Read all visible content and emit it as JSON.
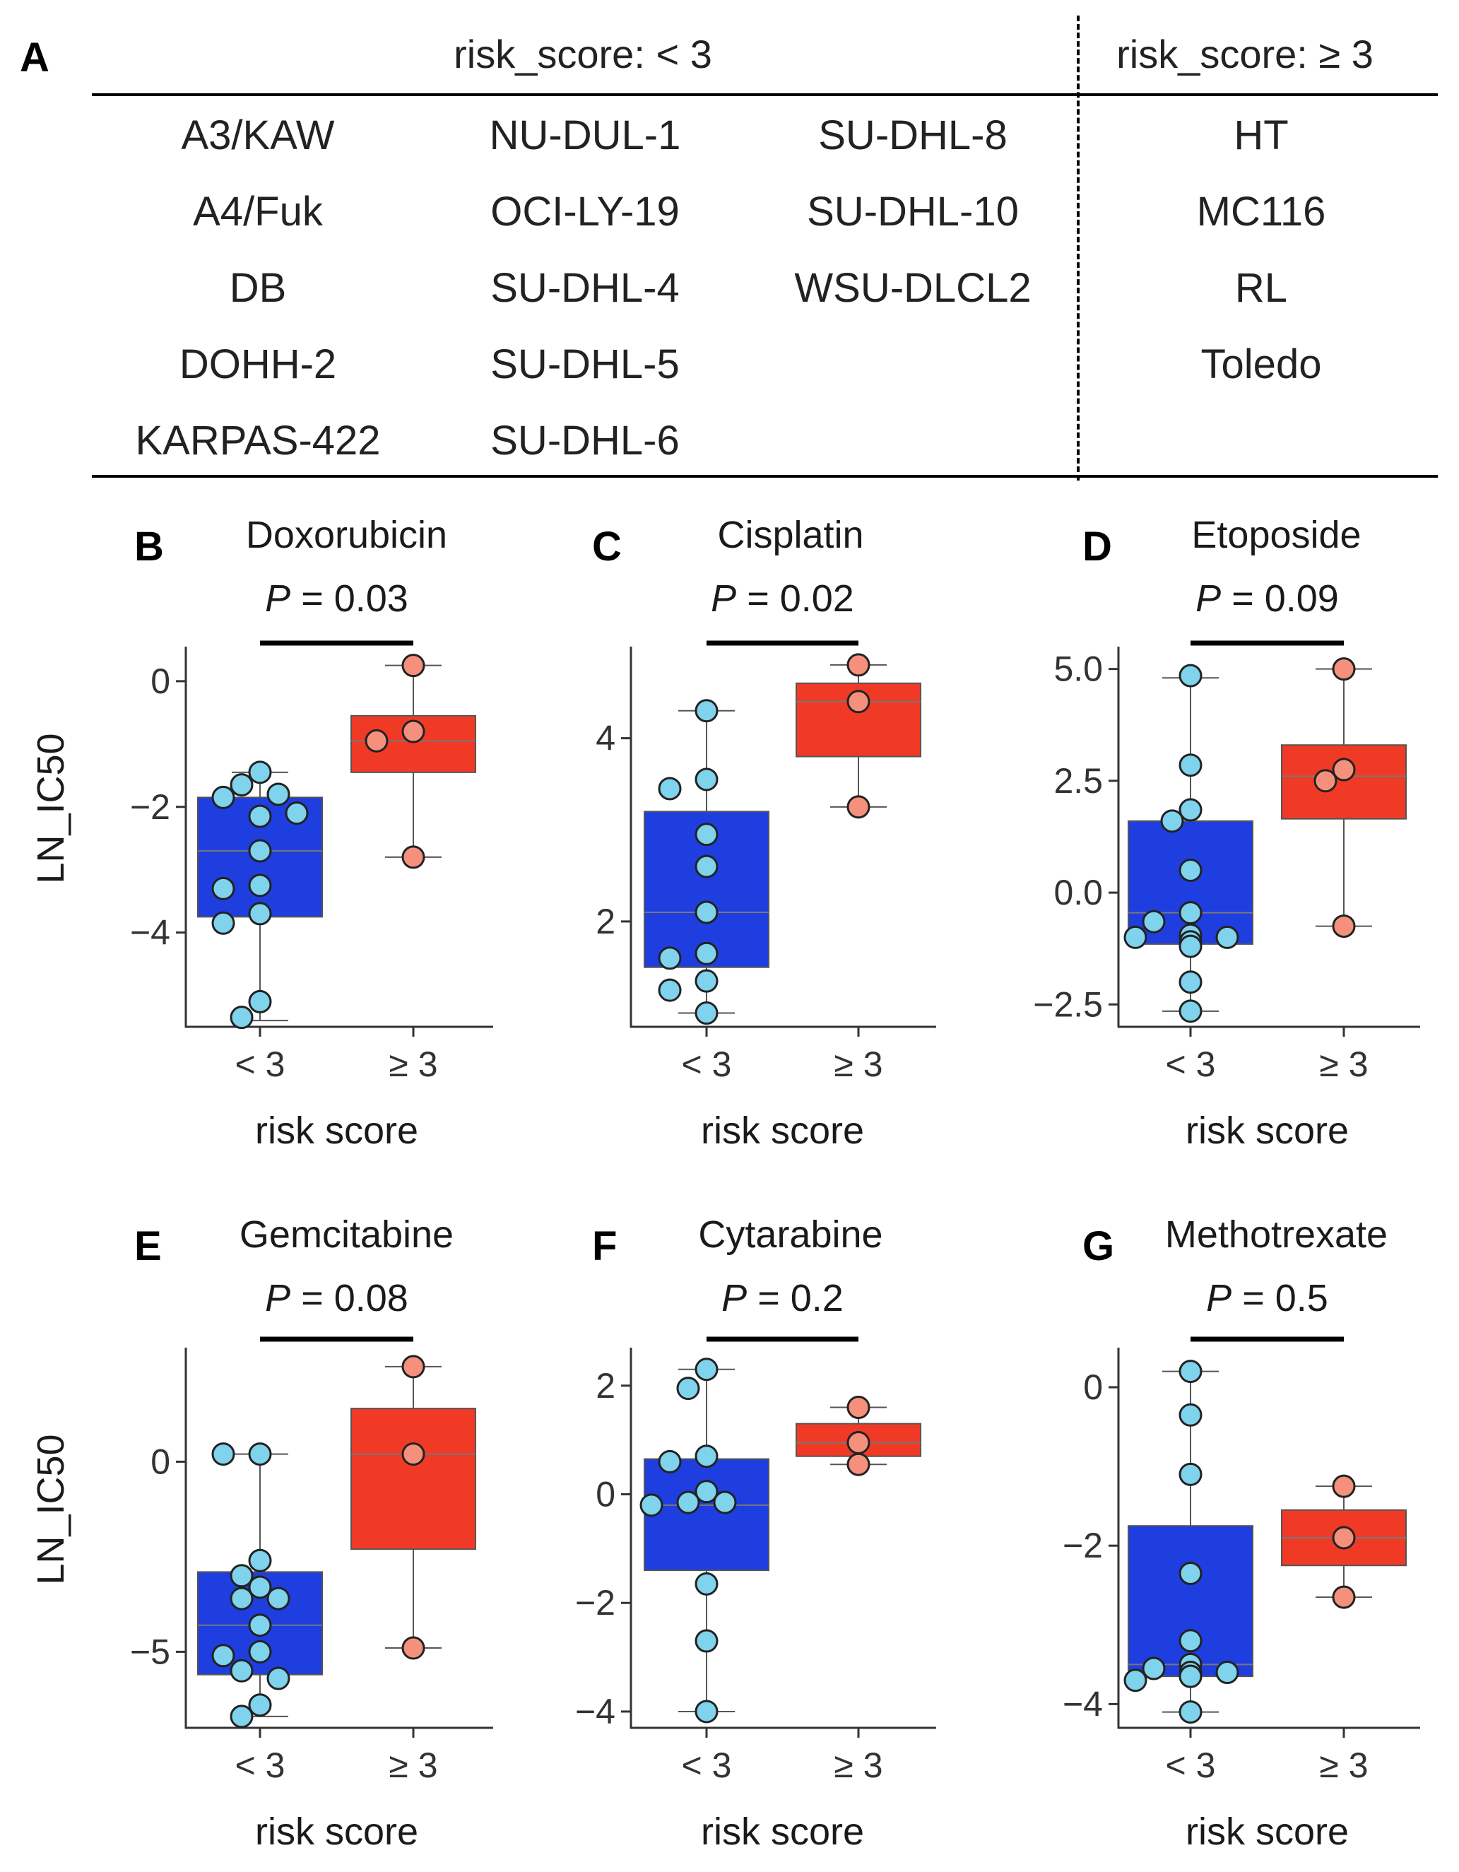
{
  "table": {
    "letter": "A",
    "group_low": {
      "header": "risk_score: < 3",
      "columns": [
        [
          "A3/KAW",
          "A4/Fuk",
          "DB",
          "DOHH-2",
          "KARPAS-422"
        ],
        [
          "NU-DUL-1",
          "OCI-LY-19",
          "SU-DHL-4",
          "SU-DHL-5",
          "SU-DHL-6"
        ],
        [
          "SU-DHL-8",
          "SU-DHL-10",
          "WSU-DLCL2"
        ]
      ]
    },
    "group_high": {
      "header": "risk_score: ≥ 3",
      "cells": [
        "HT",
        "MC116",
        "RL",
        "Toledo"
      ]
    }
  },
  "colors": {
    "low_box": "#1f3ee0",
    "high_box": "#f03a26",
    "low_point": "#7fd3ec",
    "high_point": "#f5907d"
  },
  "chart_data": [
    {
      "letter": "B",
      "type": "box",
      "title": "Doxorubicin",
      "p_label": "P",
      "p_value": "= 0.03",
      "xlabel": "risk score",
      "ylabel": "LN_IC50",
      "categories": [
        "< 3",
        "≥ 3"
      ],
      "ylim": [
        -5.5,
        0.55
      ],
      "yticks": [
        0,
        -2,
        -4
      ],
      "ytick_labels": [
        "0",
        "−2",
        "−4"
      ],
      "boxes": [
        {
          "whislo": -5.4,
          "q1": -3.75,
          "med": -2.7,
          "q3": -1.85,
          "whishi": -1.45
        },
        {
          "whislo": -2.8,
          "q1": -1.45,
          "med": -0.95,
          "q3": -0.55,
          "whishi": 0.25
        }
      ],
      "points": [
        [
          -1.45,
          -1.65,
          -1.8,
          -1.85,
          -2.15,
          -2.1,
          -2.7,
          -3.25,
          -3.3,
          -3.7,
          -3.85,
          -5.1,
          -5.35
        ],
        [
          0.25,
          -0.8,
          -0.95,
          -2.8
        ]
      ]
    },
    {
      "letter": "C",
      "type": "box",
      "title": "Cisplatin",
      "p_label": "P",
      "p_value": "= 0.02",
      "xlabel": "risk score",
      "ylabel": "",
      "categories": [
        "< 3",
        "≥ 3"
      ],
      "ylim": [
        0.85,
        5.0
      ],
      "yticks": [
        4,
        2
      ],
      "ytick_labels": [
        "4",
        "2"
      ],
      "boxes": [
        {
          "whislo": 1.0,
          "q1": 1.5,
          "med": 2.1,
          "q3": 3.2,
          "whishi": 4.3
        },
        {
          "whislo": 3.25,
          "q1": 3.8,
          "med": 4.4,
          "q3": 4.6,
          "whishi": 4.8
        }
      ],
      "points": [
        [
          4.3,
          3.55,
          3.45,
          2.95,
          2.6,
          2.1,
          1.65,
          1.6,
          1.35,
          1.25,
          1.0
        ],
        [
          4.8,
          4.4,
          3.25
        ]
      ]
    },
    {
      "letter": "D",
      "type": "box",
      "title": "Etoposide",
      "p_label": "P",
      "p_value": "= 0.09",
      "xlabel": "risk score",
      "ylabel": "",
      "categories": [
        "< 3",
        "≥ 3"
      ],
      "ylim": [
        -3.0,
        5.5
      ],
      "yticks": [
        5.0,
        2.5,
        0.0,
        -2.5
      ],
      "ytick_labels": [
        "5.0",
        "2.5",
        "0.0",
        "−2.5"
      ],
      "boxes": [
        {
          "whislo": -2.65,
          "q1": -1.15,
          "med": -0.45,
          "q3": 1.6,
          "whishi": 4.8
        },
        {
          "whislo": -0.75,
          "q1": 1.65,
          "med": 2.6,
          "q3": 3.3,
          "whishi": 5.0
        }
      ],
      "points": [
        [
          4.85,
          2.85,
          1.85,
          1.6,
          0.5,
          -0.45,
          -0.65,
          -0.95,
          -1.0,
          -1.0,
          -1.1,
          -1.2,
          -2.0,
          -2.65
        ],
        [
          5.0,
          2.75,
          2.5,
          -0.75
        ]
      ]
    },
    {
      "letter": "E",
      "type": "box",
      "title": "Gemcitabine",
      "p_label": "P",
      "p_value": "= 0.08",
      "xlabel": "risk score",
      "ylabel": "LN_IC50",
      "categories": [
        "< 3",
        "≥ 3"
      ],
      "ylim": [
        -7.0,
        3.0
      ],
      "yticks": [
        0,
        -5
      ],
      "ytick_labels": [
        "0",
        "−5"
      ],
      "boxes": [
        {
          "whislo": -6.7,
          "q1": -5.6,
          "med": -4.3,
          "q3": -2.9,
          "whishi": 0.2
        },
        {
          "whislo": -4.9,
          "q1": -2.3,
          "med": 0.2,
          "q3": 1.4,
          "whishi": 2.5
        }
      ],
      "points": [
        [
          0.2,
          0.2,
          -2.6,
          -3.0,
          -3.3,
          -3.6,
          -3.6,
          -4.3,
          -5.0,
          -5.1,
          -5.5,
          -5.7,
          -6.4,
          -6.7
        ],
        [
          2.5,
          0.2,
          -4.9
        ]
      ]
    },
    {
      "letter": "F",
      "type": "box",
      "title": "Cytarabine",
      "p_label": "P",
      "p_value": "= 0.2",
      "xlabel": "risk score",
      "ylabel": "",
      "categories": [
        "< 3",
        "≥ 3"
      ],
      "ylim": [
        -4.3,
        2.7
      ],
      "yticks": [
        2,
        0,
        -2,
        -4
      ],
      "ytick_labels": [
        "2",
        "0",
        "−2",
        "−4"
      ],
      "boxes": [
        {
          "whislo": -4.0,
          "q1": -1.4,
          "med": -0.2,
          "q3": 0.65,
          "whishi": 2.3
        },
        {
          "whislo": 0.55,
          "q1": 0.7,
          "med": 0.95,
          "q3": 1.3,
          "whishi": 1.6
        }
      ],
      "points": [
        [
          2.3,
          1.95,
          0.7,
          0.6,
          0.05,
          -0.15,
          -0.15,
          -0.2,
          -1.65,
          -2.7,
          -4.0
        ],
        [
          1.6,
          0.95,
          0.55
        ]
      ]
    },
    {
      "letter": "G",
      "type": "box",
      "title": "Methotrexate",
      "p_label": "P",
      "p_value": "= 0.5",
      "xlabel": "risk score",
      "ylabel": "",
      "categories": [
        "< 3",
        "≥ 3"
      ],
      "ylim": [
        -4.3,
        0.5
      ],
      "yticks": [
        0,
        -2,
        -4
      ],
      "ytick_labels": [
        "0",
        "−2",
        "−4"
      ],
      "boxes": [
        {
          "whislo": -4.1,
          "q1": -3.65,
          "med": -3.5,
          "q3": -1.75,
          "whishi": 0.2
        },
        {
          "whislo": -2.65,
          "q1": -2.25,
          "med": -1.9,
          "q3": -1.55,
          "whishi": -1.25
        }
      ],
      "points": [
        [
          0.2,
          -0.35,
          -1.1,
          -2.35,
          -3.2,
          -3.5,
          -3.55,
          -3.6,
          -3.6,
          -3.65,
          -3.65,
          -3.7,
          -4.1
        ],
        [
          -1.25,
          -1.9,
          -2.65
        ]
      ]
    }
  ]
}
